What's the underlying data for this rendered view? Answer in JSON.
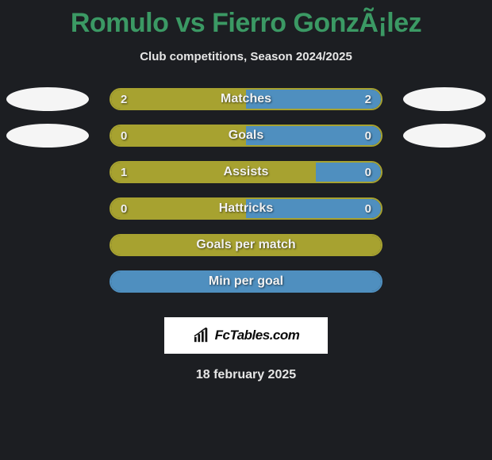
{
  "title": "Romulo vs Fierro GonzÃ¡lez",
  "subtitle": "Club competitions, Season 2024/2025",
  "date": "18 february 2025",
  "logo_text": "FcTables.com",
  "colors": {
    "background": "#1c1e22",
    "title": "#3b9964",
    "text": "#e6e6e6",
    "bar_left": "#a7a230",
    "bar_right": "#4f8fbf",
    "bubble": "#f5f5f5",
    "logo_bg": "#ffffff"
  },
  "stats": [
    {
      "label": "Matches",
      "left_value": "2",
      "right_value": "2",
      "left_pct": 50,
      "right_pct": 50,
      "left_color": "#a7a230",
      "right_color": "#4f8fbf",
      "show_values": true,
      "show_bubbles": true,
      "border_color": "#a7a230"
    },
    {
      "label": "Goals",
      "left_value": "0",
      "right_value": "0",
      "left_pct": 50,
      "right_pct": 50,
      "left_color": "#a7a230",
      "right_color": "#4f8fbf",
      "show_values": true,
      "show_bubbles": true,
      "border_color": "#a7a230"
    },
    {
      "label": "Assists",
      "left_value": "1",
      "right_value": "0",
      "left_pct": 76,
      "right_pct": 24,
      "left_color": "#a7a230",
      "right_color": "#4f8fbf",
      "show_values": true,
      "show_bubbles": false,
      "border_color": "#a7a230"
    },
    {
      "label": "Hattricks",
      "left_value": "0",
      "right_value": "0",
      "left_pct": 50,
      "right_pct": 50,
      "left_color": "#a7a230",
      "right_color": "#4f8fbf",
      "show_values": true,
      "show_bubbles": false,
      "border_color": "#a7a230"
    },
    {
      "label": "Goals per match",
      "left_value": "",
      "right_value": "",
      "left_pct": 100,
      "right_pct": 0,
      "left_color": "#a7a230",
      "right_color": "#4f8fbf",
      "show_values": false,
      "show_bubbles": false,
      "border_color": "#a7a230"
    },
    {
      "label": "Min per goal",
      "left_value": "",
      "right_value": "",
      "left_pct": 0,
      "right_pct": 100,
      "left_color": "#a7a230",
      "right_color": "#4f8fbf",
      "show_values": false,
      "show_bubbles": false,
      "border_color": "#4f8fbf"
    }
  ]
}
